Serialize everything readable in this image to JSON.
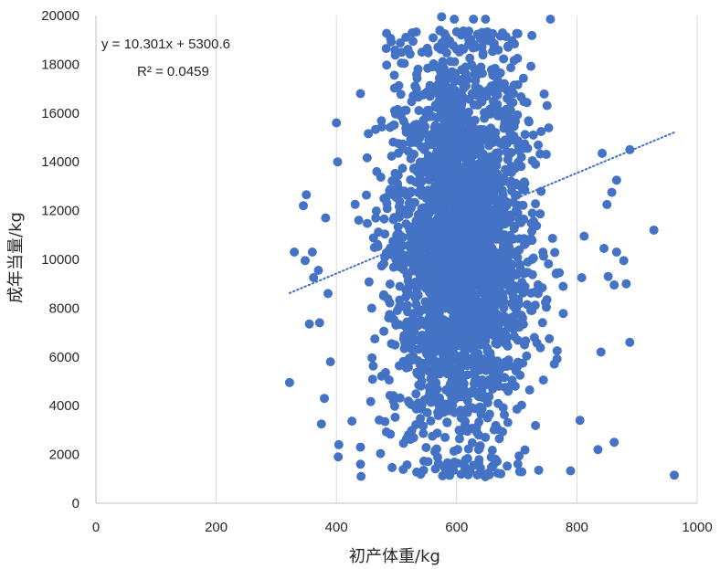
{
  "chart_data": {
    "type": "scatter",
    "xlabel": "初产体重/kg",
    "ylabel": "成年当量/kg",
    "xlim": [
      0,
      1000
    ],
    "ylim": [
      0,
      20000
    ],
    "x_ticks": [
      "0",
      "200",
      "400",
      "600",
      "800",
      "1000"
    ],
    "y_ticks": [
      "0",
      "2000",
      "4000",
      "6000",
      "8000",
      "10000",
      "12000",
      "14000",
      "16000",
      "18000",
      "20000"
    ],
    "grid": "vertical",
    "legend": "none",
    "marker_color": "#4472C4",
    "trendline": {
      "type": "linear",
      "slope": 10.301,
      "intercept": 5300.6,
      "x_range": [
        322,
        962
      ],
      "style": "dotted",
      "equation_label": "y = 10.301x + 5300.6",
      "r2_label": "R² = 0.0459"
    },
    "series": [
      {
        "points": [
          [
            322,
            4950
          ],
          [
            330,
            10300
          ],
          [
            345,
            12200
          ],
          [
            350,
            12650
          ],
          [
            348,
            9950
          ],
          [
            355,
            7350
          ],
          [
            360,
            10300
          ],
          [
            362,
            9250
          ],
          [
            370,
            9550
          ],
          [
            372,
            7400
          ],
          [
            375,
            3250
          ],
          [
            380,
            4300
          ],
          [
            382,
            11700
          ],
          [
            386,
            8600
          ],
          [
            390,
            5800
          ],
          [
            400,
            15600
          ],
          [
            402,
            14000
          ],
          [
            404,
            2400
          ],
          [
            403,
            1900
          ],
          [
            440,
            16800
          ],
          [
            441,
            1100
          ],
          [
            440,
            2300
          ],
          [
            440,
            1600
          ],
          [
            575,
            19950
          ],
          [
            596,
            19850
          ],
          [
            628,
            19850
          ],
          [
            648,
            19850
          ],
          [
            756,
            19850
          ],
          [
            842,
            14350
          ],
          [
            888,
            14500
          ],
          [
            866,
            13250
          ],
          [
            858,
            12750
          ],
          [
            850,
            12250
          ],
          [
            845,
            10450
          ],
          [
            866,
            10300
          ],
          [
            878,
            9950
          ],
          [
            852,
            9300
          ],
          [
            862,
            8950
          ],
          [
            882,
            9000
          ],
          [
            840,
            6200
          ],
          [
            888,
            6600
          ],
          [
            805,
            3400
          ],
          [
            835,
            2200
          ],
          [
            862,
            2500
          ],
          [
            928,
            11200
          ],
          [
            962,
            1150
          ],
          [
            808,
            9250
          ],
          [
            812,
            10950
          ]
        ]
      }
    ]
  }
}
